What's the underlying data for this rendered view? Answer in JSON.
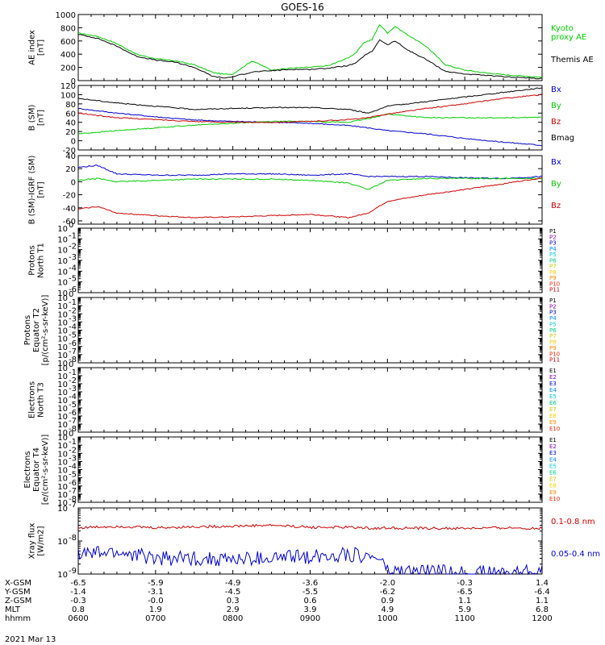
{
  "figure": {
    "title": "GOES-16",
    "date": "2021 Mar 13",
    "x_ticks_hhmm": [
      "0600",
      "0700",
      "0800",
      "0900",
      "1000",
      "1100",
      "1200"
    ],
    "footer_rows": [
      {
        "label": "X-GSM",
        "values": [
          "-6.5",
          "-5.9",
          "-4.9",
          "-3.6",
          "-2.0",
          "-0.3",
          "1.4"
        ]
      },
      {
        "label": "Y-GSM",
        "values": [
          "-1.4",
          "-3.1",
          "-4.5",
          "-5.5",
          "-6.2",
          "-6.5",
          "-6.4"
        ]
      },
      {
        "label": "Z-GSM",
        "values": [
          "-0.3",
          "-0.0",
          "0.3",
          "0.6",
          "0.9",
          "1.1",
          "1.1"
        ]
      },
      {
        "label": "MLT",
        "values": [
          "0.8",
          "1.9",
          "2.9",
          "3.9",
          "4.9",
          "5.9",
          "6.8"
        ]
      },
      {
        "label": "hhmm",
        "values": [
          "0600",
          "0700",
          "0800",
          "0900",
          "1000",
          "1100",
          "1200"
        ]
      }
    ]
  },
  "chart_data": [
    {
      "type": "line",
      "ylabel": [
        "AE index",
        "[nT]"
      ],
      "ylim": [
        0,
        1000
      ],
      "yticks": [
        "0",
        "200",
        "400",
        "600",
        "800",
        "1000"
      ],
      "x_hours": [
        6.0,
        6.25,
        6.5,
        6.75,
        7.0,
        7.25,
        7.5,
        7.75,
        7.9,
        8.0,
        8.25,
        8.5,
        8.75,
        9.0,
        9.25,
        9.5,
        9.6,
        9.7,
        9.8,
        9.9,
        10.0,
        10.1,
        10.25,
        10.5,
        10.75,
        11.0,
        11.25,
        11.5,
        11.75,
        12.0
      ],
      "series": [
        {
          "name": "Kyoto proxy AE",
          "color": "#00cc00",
          "values": [
            720,
            670,
            560,
            400,
            330,
            300,
            240,
            120,
            95,
            100,
            300,
            160,
            190,
            200,
            230,
            350,
            430,
            580,
            620,
            850,
            720,
            820,
            700,
            520,
            240,
            160,
            120,
            90,
            70,
            50
          ]
        },
        {
          "name": "Themis AE",
          "color": "#000000",
          "values": [
            700,
            640,
            520,
            370,
            310,
            280,
            200,
            60,
            40,
            60,
            130,
            150,
            170,
            170,
            190,
            230,
            270,
            380,
            440,
            620,
            540,
            600,
            470,
            320,
            140,
            100,
            80,
            60,
            45,
            30
          ]
        }
      ]
    },
    {
      "type": "line",
      "ylabel": [
        "B (SM)",
        "[nT]"
      ],
      "ylim": [
        -20,
        120
      ],
      "yticks": [
        "-20",
        "0",
        "20",
        "40",
        "60",
        "80",
        "100",
        "120"
      ],
      "x_hours": [
        6.0,
        6.5,
        7.0,
        7.5,
        8.0,
        8.5,
        9.0,
        9.5,
        9.75,
        10.0,
        10.5,
        11.0,
        11.5,
        12.0
      ],
      "series": [
        {
          "name": "Bx",
          "color": "#0000cc",
          "values": [
            70,
            60,
            52,
            45,
            42,
            40,
            38,
            33,
            28,
            22,
            15,
            5,
            -3,
            -10
          ]
        },
        {
          "name": "By",
          "color": "#00cc00",
          "values": [
            15,
            22,
            28,
            34,
            38,
            42,
            42,
            40,
            48,
            58,
            50,
            50,
            50,
            51
          ]
        },
        {
          "name": "Bz",
          "color": "#cc0000",
          "values": [
            60,
            50,
            46,
            42,
            40,
            40,
            42,
            46,
            50,
            58,
            70,
            80,
            92,
            100
          ]
        },
        {
          "name": "Bmag",
          "color": "#000000",
          "values": [
            92,
            82,
            75,
            68,
            70,
            72,
            72,
            68,
            60,
            75,
            85,
            95,
            105,
            115
          ]
        }
      ]
    },
    {
      "type": "line",
      "ylabel": [
        "B (SM)-IGRF (SM)",
        "[nT]"
      ],
      "ylim": [
        -65,
        40
      ],
      "yticks": [
        "-60",
        "-40",
        "-20",
        "0",
        "20",
        "40"
      ],
      "x_hours": [
        6.0,
        6.25,
        6.5,
        7.0,
        7.5,
        8.0,
        8.5,
        9.0,
        9.5,
        9.75,
        10.0,
        10.5,
        11.0,
        11.5,
        12.0
      ],
      "series": [
        {
          "name": "Bx",
          "color": "#0000cc",
          "values": [
            22,
            25,
            12,
            10,
            10,
            12,
            12,
            10,
            12,
            8,
            8,
            8,
            6,
            5,
            8
          ]
        },
        {
          "name": "By",
          "color": "#00cc00",
          "values": [
            2,
            5,
            0,
            2,
            4,
            4,
            4,
            2,
            -2,
            -12,
            2,
            5,
            5,
            5,
            5
          ]
        },
        {
          "name": "Bz",
          "color": "#cc0000",
          "values": [
            -42,
            -38,
            -48,
            -52,
            -55,
            -54,
            -52,
            -50,
            -55,
            -48,
            -30,
            -20,
            -12,
            -3,
            6
          ]
        }
      ]
    },
    {
      "type": "line",
      "ylabel": [
        "Protons",
        "North T1"
      ],
      "log": true,
      "ylim": [
        "1e-6",
        "1e0"
      ],
      "yticks": [
        "10",
        "10",
        "10",
        "10",
        "10",
        "10",
        "10"
      ],
      "yexps": [
        "-6",
        "-5",
        "-4",
        "-3",
        "-2",
        "-1",
        "0"
      ],
      "channels": [
        "P1",
        "P2",
        "P3",
        "P4",
        "P5",
        "P6",
        "P7",
        "P8",
        "P9",
        "P10",
        "P11"
      ]
    },
    {
      "type": "line",
      "ylabel": [
        "Protons",
        "Equator T2",
        "[p/(cm²-s-sr-keV)]"
      ],
      "log": true,
      "ylim": [
        "1e-8",
        "1e0"
      ],
      "yticks": [
        "10",
        "10",
        "10",
        "10",
        "10",
        "10",
        "10",
        "10",
        "10"
      ],
      "yexps": [
        "-8",
        "-7",
        "-6",
        "-5",
        "-4",
        "-3",
        "-2",
        "-1",
        "0"
      ],
      "channels": [
        "P1",
        "P2",
        "P3",
        "P4",
        "P5",
        "P6",
        "P7",
        "P8",
        "P9",
        "P10",
        "P11"
      ]
    },
    {
      "type": "line",
      "ylabel": [
        "Electrons",
        "North T3"
      ],
      "log": true,
      "ylim": [
        "1e-8",
        "1e0"
      ],
      "yticks": [
        "10",
        "10",
        "10",
        "10",
        "10",
        "10",
        "10",
        "10",
        "10"
      ],
      "yexps": [
        "-8",
        "-7",
        "-6",
        "-5",
        "-4",
        "-3",
        "-2",
        "-1",
        "0"
      ],
      "channels": [
        "E1",
        "E2",
        "E3",
        "E4",
        "E5",
        "E6",
        "E7",
        "E8",
        "E9",
        "E10"
      ]
    },
    {
      "type": "line",
      "ylabel": [
        "Electrons",
        "Equator T4",
        "[e/(cm²-s-sr-keV)]"
      ],
      "log": true,
      "ylim": [
        "1e-8",
        "1e0"
      ],
      "yticks": [
        "10",
        "10",
        "10",
        "10",
        "10",
        "10",
        "10",
        "10",
        "10"
      ],
      "yexps": [
        "-8",
        "-7",
        "-6",
        "-5",
        "-4",
        "-3",
        "-2",
        "-1",
        "0"
      ],
      "channels": [
        "E1",
        "E2",
        "E3",
        "E4",
        "E5",
        "E6",
        "E7",
        "E8",
        "E9",
        "E10"
      ]
    },
    {
      "type": "line",
      "ylabel": [
        "Xray flux",
        "[W/m2]"
      ],
      "log": true,
      "ylim": [
        "1e-9",
        "1e-7"
      ],
      "yticks": [
        "10",
        "10",
        "10"
      ],
      "yexps": [
        "-9",
        "-8",
        "-7"
      ],
      "x_hours": [
        6.0,
        6.5,
        7.0,
        7.5,
        8.0,
        8.5,
        9.0,
        9.5,
        9.9,
        10.0,
        10.5,
        11.0,
        11.5,
        12.0
      ],
      "series": [
        {
          "name": "0.1-0.8 nm",
          "color": "#cc0000",
          "values": [
            2.5e-08,
            2.8e-08,
            2.5e-08,
            2.7e-08,
            2.8e-08,
            3e-08,
            2.6e-08,
            2.6e-08,
            2.4e-08,
            2.5e-08,
            2.4e-08,
            2.4e-08,
            2.5e-08,
            2.4e-08
          ]
        },
        {
          "name": "0.05-0.4 nm",
          "color": "#0000cc",
          "values": [
            4e-09,
            4.5e-09,
            3e-09,
            3e-09,
            2.7e-09,
            3e-09,
            3.5e-09,
            4e-09,
            3e-09,
            1.2e-09,
            1.2e-09,
            1.1e-09,
            1.1e-09,
            1.3e-09
          ]
        }
      ]
    }
  ]
}
